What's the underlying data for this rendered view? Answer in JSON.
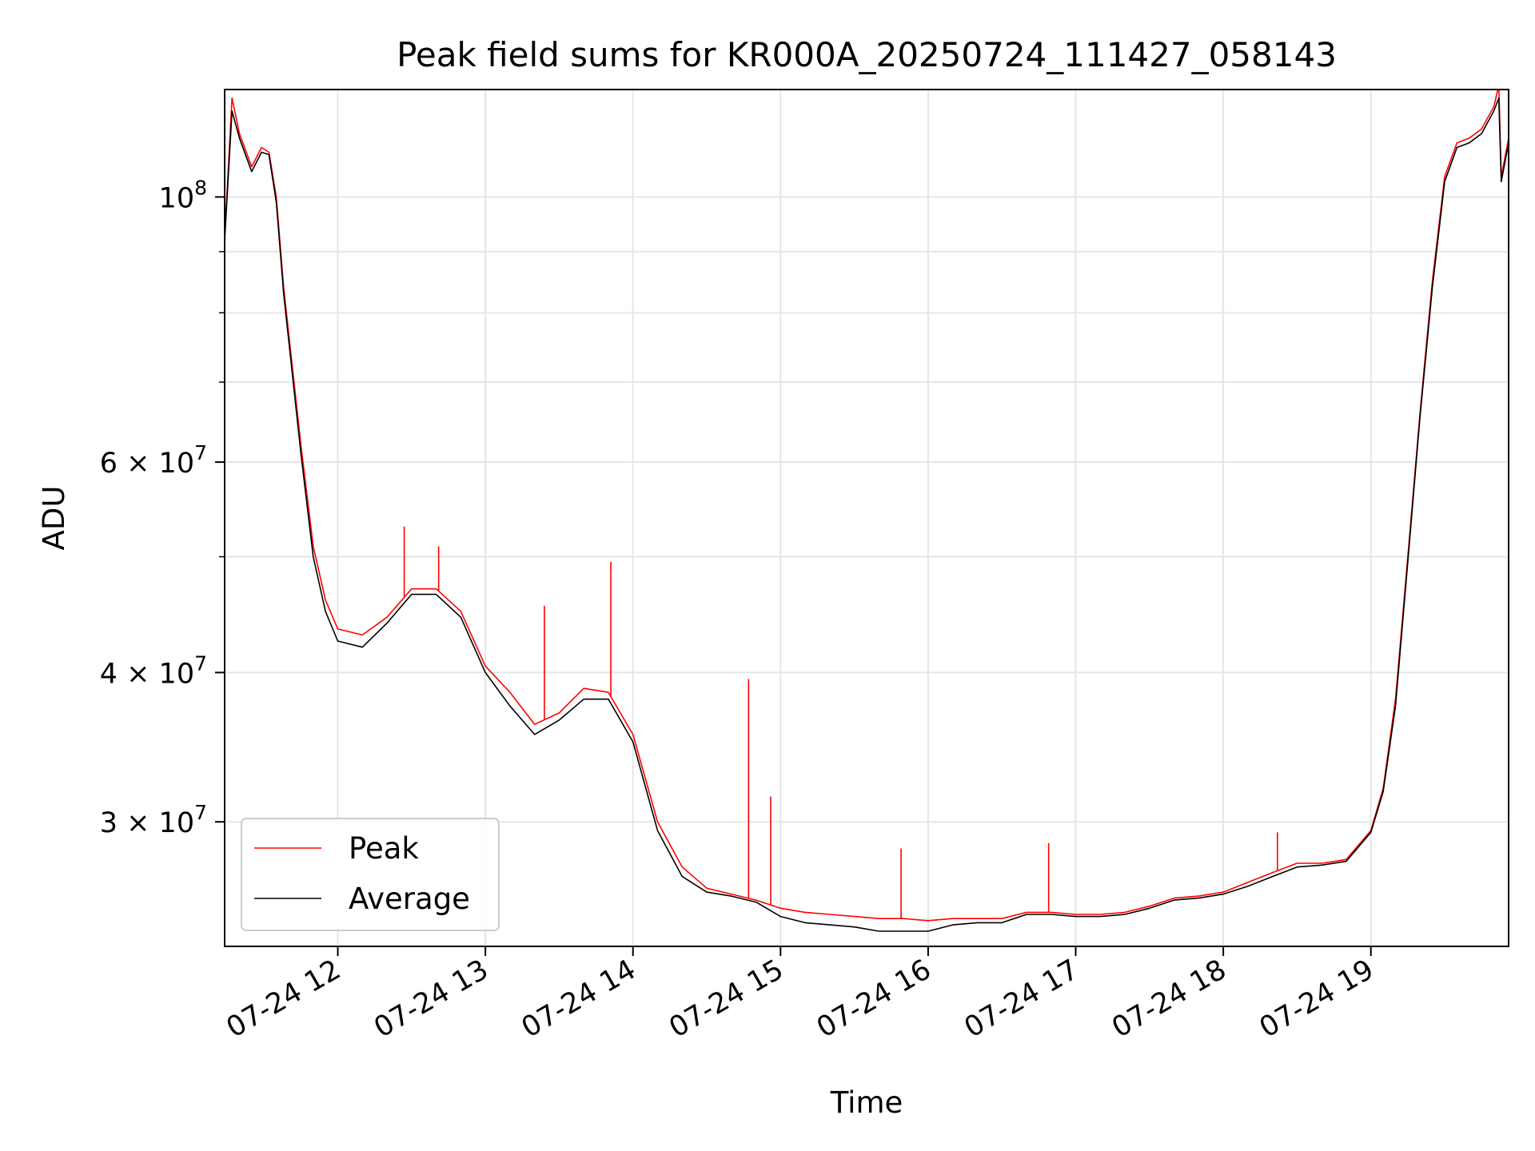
{
  "chart_data": {
    "type": "line",
    "title": "Peak field sums for KR000A_20250724_111427_058143",
    "xlabel": "Time",
    "ylabel": "ADU",
    "yscale": "log",
    "ylim": [
      23600000,
      123000000
    ],
    "xlim": [
      "2025-07-24 11:14",
      "2025-07-24 19:56"
    ],
    "grid": true,
    "legend_position": "lower-left",
    "x_ticks": [
      {
        "value": "2025-07-24 12:00",
        "label": "07-24 12"
      },
      {
        "value": "2025-07-24 13:00",
        "label": "07-24 13"
      },
      {
        "value": "2025-07-24 14:00",
        "label": "07-24 14"
      },
      {
        "value": "2025-07-24 15:00",
        "label": "07-24 15"
      },
      {
        "value": "2025-07-24 16:00",
        "label": "07-24 16"
      },
      {
        "value": "2025-07-24 17:00",
        "label": "07-24 17"
      },
      {
        "value": "2025-07-24 18:00",
        "label": "07-24 18"
      },
      {
        "value": "2025-07-24 19:00",
        "label": "07-24 19"
      }
    ],
    "y_major_ticks": [
      {
        "value": 30000000,
        "mantissa": "3",
        "exp": "7"
      },
      {
        "value": 40000000,
        "mantissa": "4",
        "exp": "7"
      },
      {
        "value": 60000000,
        "mantissa": "6",
        "exp": "7"
      },
      {
        "value": 100000000,
        "mantissa": "",
        "exp": "8"
      }
    ],
    "y_minor_ticks": [
      50000000,
      70000000,
      80000000,
      90000000
    ],
    "series": [
      {
        "name": "Peak",
        "color": "#ff0000",
        "x": [
          "2025-07-24 11:14",
          "2025-07-24 11:17",
          "2025-07-24 11:20",
          "2025-07-24 11:25",
          "2025-07-24 11:29",
          "2025-07-24 11:32",
          "2025-07-24 11:35",
          "2025-07-24 11:38",
          "2025-07-24 11:45",
          "2025-07-24 11:50",
          "2025-07-24 11:55",
          "2025-07-24 12:00",
          "2025-07-24 12:10",
          "2025-07-24 12:20",
          "2025-07-24 12:30",
          "2025-07-24 12:40",
          "2025-07-24 12:50",
          "2025-07-24 13:00",
          "2025-07-24 13:10",
          "2025-07-24 13:20",
          "2025-07-24 13:30",
          "2025-07-24 13:40",
          "2025-07-24 13:50",
          "2025-07-24 14:00",
          "2025-07-24 14:10",
          "2025-07-24 14:20",
          "2025-07-24 14:30",
          "2025-07-24 14:40",
          "2025-07-24 14:50",
          "2025-07-24 15:00",
          "2025-07-24 15:10",
          "2025-07-24 15:20",
          "2025-07-24 15:30",
          "2025-07-24 15:40",
          "2025-07-24 15:50",
          "2025-07-24 16:00",
          "2025-07-24 16:10",
          "2025-07-24 16:20",
          "2025-07-24 16:30",
          "2025-07-24 16:40",
          "2025-07-24 16:50",
          "2025-07-24 17:00",
          "2025-07-24 17:10",
          "2025-07-24 17:20",
          "2025-07-24 17:30",
          "2025-07-24 17:40",
          "2025-07-24 17:50",
          "2025-07-24 18:00",
          "2025-07-24 18:10",
          "2025-07-24 18:20",
          "2025-07-24 18:30",
          "2025-07-24 18:40",
          "2025-07-24 18:50",
          "2025-07-24 19:00",
          "2025-07-24 19:05",
          "2025-07-24 19:10",
          "2025-07-24 19:15",
          "2025-07-24 19:20",
          "2025-07-24 19:25",
          "2025-07-24 19:30",
          "2025-07-24 19:35",
          "2025-07-24 19:40",
          "2025-07-24 19:45",
          "2025-07-24 19:50",
          "2025-07-24 19:52",
          "2025-07-24 19:53",
          "2025-07-24 19:56"
        ],
        "y": [
          92500000,
          121000000,
          113000000,
          106000000,
          110000000,
          109000000,
          100000000,
          84000000,
          62000000,
          51000000,
          46000000,
          43500000,
          43000000,
          44500000,
          47000000,
          47000000,
          45000000,
          40500000,
          38500000,
          36200000,
          37000000,
          38800000,
          38500000,
          35500000,
          30000000,
          27500000,
          26400000,
          26100000,
          25800000,
          25400000,
          25200000,
          25100000,
          25000000,
          24900000,
          24900000,
          24800000,
          24900000,
          24900000,
          24900000,
          25200000,
          25200000,
          25100000,
          25100000,
          25200000,
          25500000,
          25900000,
          26000000,
          26200000,
          26700000,
          27200000,
          27700000,
          27700000,
          27900000,
          29500000,
          32000000,
          38000000,
          50000000,
          66000000,
          85000000,
          104000000,
          111000000,
          112000000,
          114000000,
          119000000,
          124000000,
          104000000,
          112000000
        ],
        "spikes": [
          {
            "x": "2025-07-24 12:27",
            "y": 53000000
          },
          {
            "x": "2025-07-24 12:41",
            "y": 51000000
          },
          {
            "x": "2025-07-24 13:24",
            "y": 45500000
          },
          {
            "x": "2025-07-24 13:51",
            "y": 49500000
          },
          {
            "x": "2025-07-24 14:47",
            "y": 39500000
          },
          {
            "x": "2025-07-24 14:56",
            "y": 31500000
          },
          {
            "x": "2025-07-24 15:49",
            "y": 28500000
          },
          {
            "x": "2025-07-24 16:49",
            "y": 28800000
          },
          {
            "x": "2025-07-24 18:22",
            "y": 29400000
          }
        ]
      },
      {
        "name": "Average",
        "color": "#000000",
        "x": [
          "2025-07-24 11:14",
          "2025-07-24 11:17",
          "2025-07-24 11:20",
          "2025-07-24 11:25",
          "2025-07-24 11:29",
          "2025-07-24 11:32",
          "2025-07-24 11:35",
          "2025-07-24 11:38",
          "2025-07-24 11:45",
          "2025-07-24 11:50",
          "2025-07-24 11:55",
          "2025-07-24 12:00",
          "2025-07-24 12:10",
          "2025-07-24 12:20",
          "2025-07-24 12:30",
          "2025-07-24 12:40",
          "2025-07-24 12:50",
          "2025-07-24 13:00",
          "2025-07-24 13:10",
          "2025-07-24 13:20",
          "2025-07-24 13:30",
          "2025-07-24 13:40",
          "2025-07-24 13:50",
          "2025-07-24 14:00",
          "2025-07-24 14:10",
          "2025-07-24 14:20",
          "2025-07-24 14:30",
          "2025-07-24 14:40",
          "2025-07-24 14:50",
          "2025-07-24 15:00",
          "2025-07-24 15:10",
          "2025-07-24 15:20",
          "2025-07-24 15:30",
          "2025-07-24 15:40",
          "2025-07-24 15:50",
          "2025-07-24 16:00",
          "2025-07-24 16:10",
          "2025-07-24 16:20",
          "2025-07-24 16:30",
          "2025-07-24 16:40",
          "2025-07-24 16:50",
          "2025-07-24 17:00",
          "2025-07-24 17:10",
          "2025-07-24 17:20",
          "2025-07-24 17:30",
          "2025-07-24 17:40",
          "2025-07-24 17:50",
          "2025-07-24 18:00",
          "2025-07-24 18:10",
          "2025-07-24 18:20",
          "2025-07-24 18:30",
          "2025-07-24 18:40",
          "2025-07-24 18:50",
          "2025-07-24 19:00",
          "2025-07-24 19:05",
          "2025-07-24 19:10",
          "2025-07-24 19:15",
          "2025-07-24 19:20",
          "2025-07-24 19:25",
          "2025-07-24 19:30",
          "2025-07-24 19:35",
          "2025-07-24 19:40",
          "2025-07-24 19:45",
          "2025-07-24 19:50",
          "2025-07-24 19:52",
          "2025-07-24 19:53",
          "2025-07-24 19:56"
        ],
        "y": [
          92000000,
          118000000,
          112000000,
          105000000,
          109000000,
          108500000,
          99000000,
          83000000,
          61000000,
          50000000,
          45000000,
          42500000,
          42000000,
          44000000,
          46500000,
          46500000,
          44500000,
          40000000,
          37500000,
          35500000,
          36500000,
          38000000,
          38000000,
          35000000,
          29500000,
          27000000,
          26200000,
          26000000,
          25700000,
          25000000,
          24700000,
          24600000,
          24500000,
          24300000,
          24300000,
          24300000,
          24600000,
          24700000,
          24700000,
          25100000,
          25100000,
          25000000,
          25000000,
          25100000,
          25400000,
          25800000,
          25900000,
          26100000,
          26500000,
          27000000,
          27500000,
          27600000,
          27800000,
          29400000,
          31800000,
          37500000,
          49500000,
          65500000,
          84000000,
          103000000,
          110000000,
          111000000,
          113000000,
          118000000,
          121000000,
          103000000,
          111000000
        ]
      }
    ]
  }
}
